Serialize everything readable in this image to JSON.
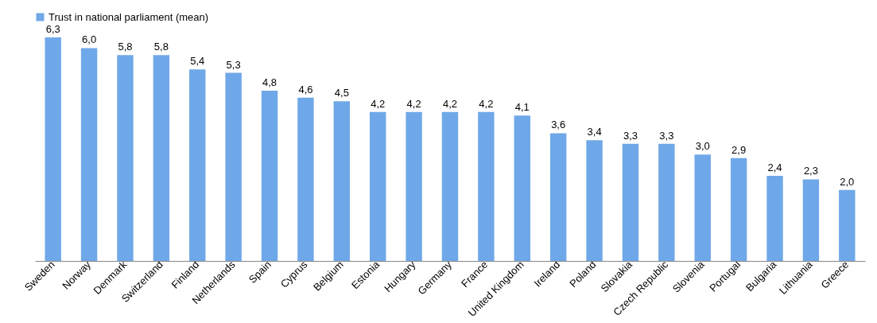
{
  "chart_data": {
    "type": "bar",
    "categories": [
      "Sweden",
      "Norway",
      "Denmark",
      "Switzerland",
      "Finland",
      "Netherlands",
      "Spain",
      "Cyprus",
      "Belgium",
      "Estonia",
      "Hungary",
      "Germany",
      "France",
      "United Kingdom",
      "Ireland",
      "Poland",
      "Slovakia",
      "Czech Republic",
      "Slovenia",
      "Portugal",
      "Bulgaria",
      "Lithuania",
      "Greece"
    ],
    "series": [
      {
        "name": "Trust in national parliament (mean)",
        "color": "#6fa8e8",
        "values": [
          6.3,
          6.0,
          5.8,
          5.8,
          5.4,
          5.3,
          4.8,
          4.6,
          4.5,
          4.2,
          4.2,
          4.2,
          4.2,
          4.1,
          3.6,
          3.4,
          3.3,
          3.3,
          3.0,
          2.9,
          2.4,
          2.3,
          2.0
        ],
        "value_labels": [
          "6,3",
          "6,0",
          "5,8",
          "5,8",
          "5,4",
          "5,3",
          "4,8",
          "4,6",
          "4,5",
          "4,2",
          "4,2",
          "4,2",
          "4,2",
          "4,1",
          "3,6",
          "3,4",
          "3,3",
          "3,3",
          "3,0",
          "2,9",
          "2,4",
          "2,3",
          "2,0"
        ]
      }
    ],
    "legend": "top",
    "grid": false
  }
}
